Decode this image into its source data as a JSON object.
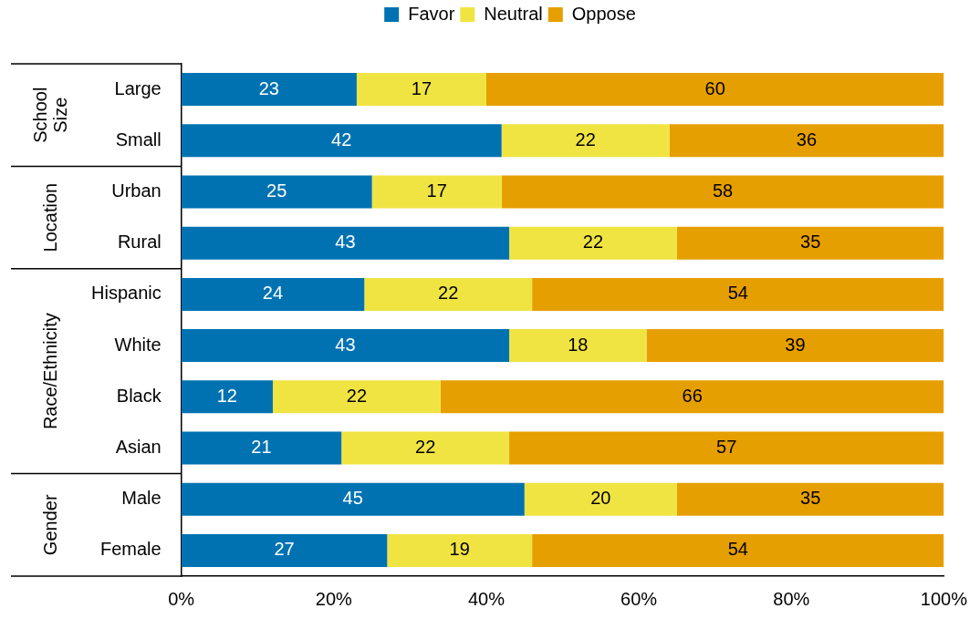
{
  "chart_data": {
    "type": "bar",
    "orientation": "horizontal",
    "stacked": true,
    "data_labels": true,
    "legend": "top",
    "grid": false,
    "categories": [
      "Large",
      "Small",
      "Urban",
      "Rural",
      "Hispanic",
      "White",
      "Black",
      "Asian",
      "Male",
      "Female"
    ],
    "series": [
      {
        "name": "Favor",
        "color": "#0072b2",
        "values": [
          23,
          42,
          25,
          43,
          24,
          43,
          12,
          21,
          45,
          27
        ]
      },
      {
        "name": "Neutral",
        "color": "#f0e442",
        "values": [
          17,
          22,
          17,
          22,
          22,
          18,
          22,
          22,
          20,
          19
        ]
      },
      {
        "name": "Oppose",
        "color": "#e69f00",
        "values": [
          60,
          36,
          58,
          35,
          54,
          39,
          66,
          57,
          35,
          54
        ]
      }
    ],
    "xlim": [
      0,
      100
    ],
    "xticks": [
      {
        "value": 0,
        "label": "0%"
      },
      {
        "value": 20,
        "label": "20%"
      },
      {
        "value": 40,
        "label": "40%"
      },
      {
        "value": 60,
        "label": "60%"
      },
      {
        "value": 80,
        "label": "80%"
      },
      {
        "value": 100,
        "label": "100%"
      }
    ],
    "annotations": [
      "School Size",
      "Location",
      "Race/Ethnicity",
      "Gender"
    ]
  }
}
